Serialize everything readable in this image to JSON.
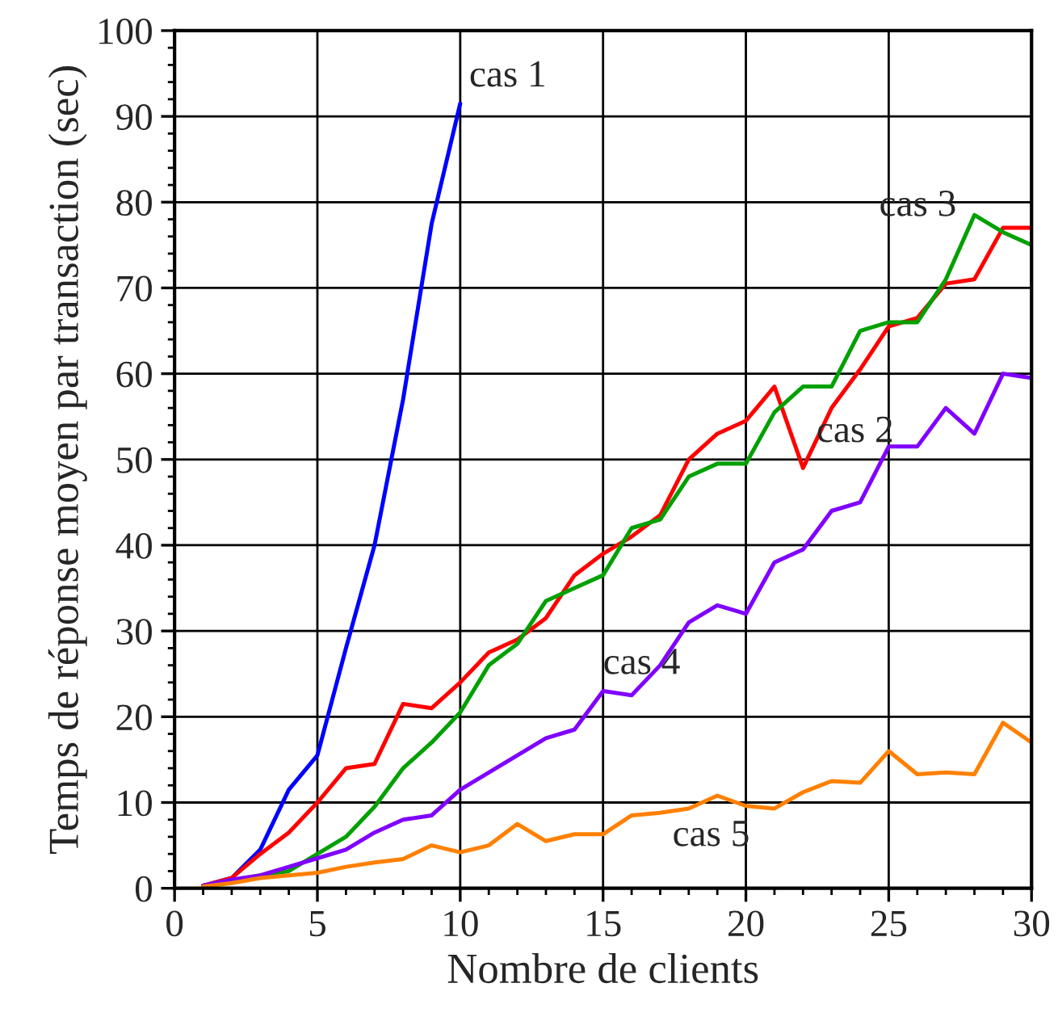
{
  "chart_data": {
    "type": "line",
    "xlabel": "Nombre de clients",
    "ylabel": "Temps de réponse moyen par transaction (sec)",
    "x": [
      1,
      2,
      3,
      4,
      5,
      6,
      7,
      8,
      9,
      10,
      11,
      12,
      13,
      14,
      15,
      16,
      17,
      18,
      19,
      20,
      21,
      22,
      23,
      24,
      25,
      26,
      27,
      28,
      29,
      30
    ],
    "series": [
      {
        "name": "cas 1",
        "color": "#0000ff",
        "x": [
          1,
          2,
          3,
          4,
          5,
          6,
          7,
          8,
          9,
          10
        ],
        "values": [
          0.3,
          1.2,
          4.5,
          11.5,
          15.5,
          28,
          40,
          57,
          77.5,
          91.5
        ]
      },
      {
        "name": "cas 2",
        "color": "#ff0000",
        "values": [
          0.3,
          1.2,
          4,
          6.5,
          10,
          14,
          14.5,
          21.5,
          21,
          24,
          27.5,
          29,
          31.5,
          36.5,
          39,
          41,
          43.5,
          50,
          53,
          54.5,
          58.5,
          49,
          56,
          60.5,
          65.5,
          66.5,
          70.5,
          71,
          77,
          77
        ]
      },
      {
        "name": "cas 3",
        "color": "#00a000",
        "values": [
          0.2,
          0.8,
          1.5,
          2,
          4,
          6,
          9.5,
          14,
          17,
          20.5,
          26,
          28.5,
          33.5,
          35,
          36.5,
          42,
          43,
          48,
          49.5,
          49.5,
          55.5,
          58.5,
          58.5,
          65,
          66,
          66,
          71,
          78.5,
          76.5,
          75
        ]
      },
      {
        "name": "cas 4",
        "color": "#8000ff",
        "values": [
          0.3,
          1,
          1.5,
          2.5,
          3.5,
          4.5,
          6.5,
          8,
          8.5,
          11.5,
          13.5,
          15.5,
          17.5,
          18.5,
          23,
          22.5,
          26,
          31,
          33,
          32,
          38,
          39.5,
          44,
          45,
          51.5,
          51.5,
          56,
          53,
          60,
          59.5
        ]
      },
      {
        "name": "cas 5",
        "color": "#ff8000",
        "values": [
          0.2,
          0.6,
          1.2,
          1.5,
          1.8,
          2.5,
          3,
          3.4,
          5,
          4.2,
          5,
          7.5,
          5.5,
          6.3,
          6.3,
          8.5,
          8.8,
          9.3,
          10.8,
          9.6,
          9.3,
          11.2,
          12.5,
          12.3,
          16,
          13.3,
          13.5,
          13.3,
          19.3,
          17
        ]
      }
    ],
    "xlim": [
      0,
      30
    ],
    "ylim": [
      0,
      100
    ],
    "xticks": [
      0,
      5,
      10,
      15,
      20,
      25,
      30
    ],
    "yticks": [
      0,
      10,
      20,
      30,
      40,
      50,
      60,
      70,
      80,
      90,
      100
    ],
    "grid": true,
    "legend": false,
    "line_style": "solid",
    "marker": "none"
  }
}
